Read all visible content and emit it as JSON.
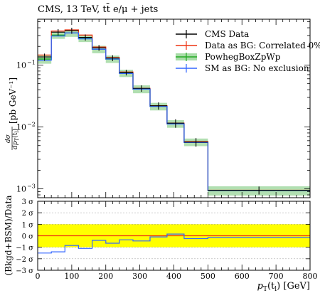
{
  "chart_data": [
    {
      "type": "step-histogram",
      "title": "CMS, 13 TeV, tt̄ e/μ + jets",
      "ylabel": "dσ/dp_T(t_l) [pb GeV⁻¹]",
      "ylabel_main": "[pb GeV⁻¹]",
      "ylabel_frac_num": "dσ",
      "ylabel_frac_den": "dp",
      "ylabel_frac_den_sub": "T",
      "ylabel_frac_den_tail": "(t",
      "ylabel_frac_den_tail_sub": "l",
      "ylabel_frac_den_close": ")",
      "yscale": "log",
      "ylim": [
        0.00072,
        0.55
      ],
      "xlim": [
        0,
        800
      ],
      "y_ticks": [
        {
          "value": 0.1,
          "base": "10",
          "exp": "−1"
        },
        {
          "value": 0.01,
          "base": "10",
          "exp": "−2"
        },
        {
          "value": 0.001,
          "base": "10",
          "exp": "−3"
        }
      ],
      "bin_edges": [
        0,
        40,
        80,
        120,
        160,
        200,
        240,
        280,
        330,
        380,
        430,
        500,
        800
      ],
      "legend_position": "top-right",
      "series": [
        {
          "name": "CMS Data",
          "color": "#000000",
          "style": "points",
          "values": [
            0.135,
            0.34,
            0.36,
            0.28,
            0.19,
            0.13,
            0.076,
            0.042,
            0.022,
            0.0115,
            0.0057,
            0.00095
          ],
          "errors": [
            0.018,
            0.04,
            0.04,
            0.032,
            0.02,
            0.014,
            0.008,
            0.005,
            0.003,
            0.0018,
            0.0009,
            0.00014
          ]
        },
        {
          "name": "Data as BG: Correlated 0%",
          "color": "#ee3311",
          "style": "line",
          "values": [
            0.145,
            0.355,
            0.37,
            0.305,
            0.195,
            0.132,
            0.077,
            0.042,
            0.022,
            0.0115,
            0.0058,
            0.00095
          ]
        },
        {
          "name": "PowhegBoxZpWp",
          "color": "#22aa22",
          "style": "band",
          "values": [
            0.125,
            0.305,
            0.33,
            0.27,
            0.18,
            0.125,
            0.074,
            0.041,
            0.0215,
            0.0113,
            0.0057,
            0.00094
          ],
          "band_lo": [
            0.105,
            0.265,
            0.285,
            0.235,
            0.155,
            0.108,
            0.064,
            0.035,
            0.0185,
            0.0097,
            0.0049,
            0.00078
          ],
          "band_hi": [
            0.145,
            0.345,
            0.375,
            0.305,
            0.205,
            0.142,
            0.084,
            0.047,
            0.0245,
            0.0129,
            0.0065,
            0.0011
          ]
        },
        {
          "name": "SM as BG: No exclusion",
          "color": "#3366ff",
          "style": "line",
          "values": [
            0.12,
            0.295,
            0.33,
            0.265,
            0.18,
            0.125,
            0.073,
            0.041,
            0.0215,
            0.0112,
            0.0056,
            0.00094
          ]
        }
      ]
    },
    {
      "type": "step-line",
      "ylabel": "(Bkgd+BSM)/Data",
      "xlabel": "p_T(t_l) [GeV]",
      "xlabel_p": "p",
      "xlabel_sub": "T",
      "xlabel_rest": "(t",
      "xlabel_sub2": "l",
      "xlabel_tail": ") [GeV]",
      "ylim": [
        -3,
        3
      ],
      "xlim": [
        0,
        800
      ],
      "x_ticks": [
        "0",
        "100",
        "200",
        "300",
        "400",
        "500",
        "600",
        "700",
        "800"
      ],
      "x_tick_values": [
        0,
        100,
        200,
        300,
        400,
        500,
        600,
        700,
        800
      ],
      "y_ticks": [
        {
          "value": 3,
          "label": "3 σ"
        },
        {
          "value": 2,
          "label": "2 σ"
        },
        {
          "value": 1,
          "label": "1 σ"
        },
        {
          "value": 0,
          "label": "0 σ"
        },
        {
          "value": -1,
          "label": "−1 σ"
        },
        {
          "value": -2,
          "label": "−2 σ"
        },
        {
          "value": -3,
          "label": "−3 σ"
        }
      ],
      "band": {
        "lo": -1,
        "hi": 1,
        "color": "#ffff00"
      },
      "bin_edges": [
        0,
        40,
        80,
        120,
        160,
        200,
        240,
        280,
        330,
        380,
        430,
        500,
        800
      ],
      "series": [
        {
          "name": "Data as BG: Correlated 0%",
          "color": "#ee3311",
          "values": [
            0,
            0,
            0,
            0,
            0,
            0,
            0,
            0,
            0,
            0,
            0,
            0
          ]
        },
        {
          "name": "SM as BG: No exclusion",
          "color": "#3366ff",
          "values": [
            -1.5,
            -1.4,
            -0.85,
            -1.1,
            -0.4,
            -0.65,
            -0.35,
            -0.45,
            -0.1,
            0.15,
            -0.25,
            -0.15
          ]
        }
      ]
    }
  ]
}
